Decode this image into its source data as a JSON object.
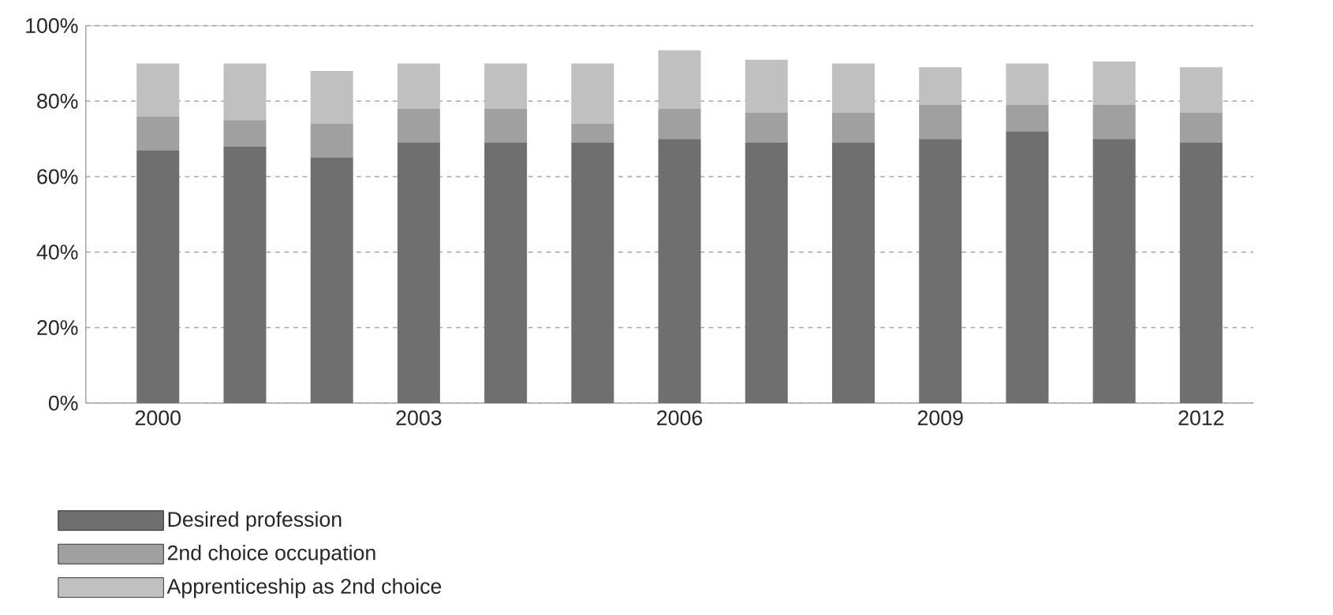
{
  "chart_data": {
    "type": "bar",
    "stacked": true,
    "categories": [
      "2000",
      null,
      null,
      "2003",
      null,
      null,
      "2006",
      null,
      null,
      "2009",
      null,
      null,
      "2012"
    ],
    "series": [
      {
        "name": "Desired profession",
        "color": "#6f6f6f",
        "values": [
          67,
          68,
          65,
          69,
          69,
          69,
          70,
          69,
          69,
          70,
          72,
          70,
          69
        ]
      },
      {
        "name": "2nd choice occupation",
        "color": "#a0a0a0",
        "values": [
          9,
          7,
          9,
          9,
          9,
          5,
          8,
          8,
          8,
          9,
          7,
          9,
          8
        ]
      },
      {
        "name": "Apprenticeship as 2nd choice",
        "color": "#c0c0c0",
        "values": [
          14,
          15,
          14,
          12,
          12,
          16,
          15.5,
          14,
          13,
          10,
          11,
          11.5,
          12
        ]
      }
    ],
    "ylim": [
      0,
      100
    ],
    "yticks": [
      {
        "value": 0,
        "label": "0%"
      },
      {
        "value": 20,
        "label": "20%"
      },
      {
        "value": 40,
        "label": "40%"
      },
      {
        "value": 60,
        "label": "60%"
      },
      {
        "value": 80,
        "label": "80%"
      },
      {
        "value": 100,
        "label": "100%"
      }
    ],
    "grid": "y",
    "legend": "bottom left"
  }
}
